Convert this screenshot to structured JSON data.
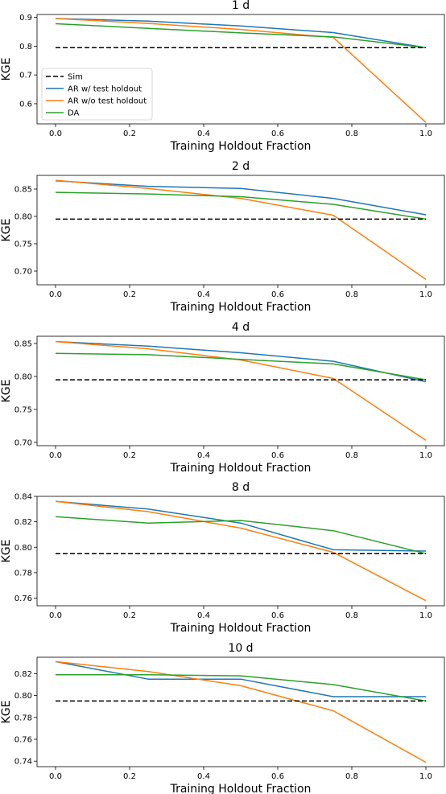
{
  "chart_data": [
    {
      "type": "line",
      "title": "1 d",
      "xlabel": "Training Holdout Fraction",
      "ylabel": "KGE",
      "x": [
        0,
        0.25,
        0.5,
        0.75,
        1.0
      ],
      "xlim": [
        -0.05,
        1.05
      ],
      "ylim": [
        0.53,
        0.91
      ],
      "xticks": [
        0,
        0.2,
        0.4,
        0.6,
        0.8,
        1.0
      ],
      "xtick_labels": [
        "0.0",
        "0.2",
        "0.4",
        "0.6",
        "0.8",
        "1.0"
      ],
      "yticks": [
        0.6,
        0.7,
        0.8,
        0.9
      ],
      "ytick_labels": [
        "0.6",
        "0.7",
        "0.8",
        "0.9"
      ],
      "series": [
        {
          "name": "Sim",
          "color": "#000000",
          "dashed": true,
          "values": [
            0.795,
            0.795,
            0.795,
            0.795,
            0.795
          ]
        },
        {
          "name": "AR w/ test holdout",
          "color": "#1f77b4",
          "values": [
            0.896,
            0.887,
            0.87,
            0.847,
            0.795
          ]
        },
        {
          "name": "AR w/o test holdout",
          "color": "#ff7f0e",
          "values": [
            0.896,
            0.879,
            0.858,
            0.83,
            0.535
          ]
        },
        {
          "name": "DA",
          "color": "#2ca02c",
          "values": [
            0.878,
            0.862,
            0.846,
            0.832,
            0.795
          ]
        }
      ],
      "legend": {
        "show": true,
        "position": "lower-left"
      }
    },
    {
      "type": "line",
      "title": "2 d",
      "xlabel": "Training Holdout Fraction",
      "ylabel": "KGE",
      "x": [
        0,
        0.25,
        0.5,
        0.75,
        1.0
      ],
      "xlim": [
        -0.05,
        1.05
      ],
      "ylim": [
        0.675,
        0.875
      ],
      "xticks": [
        0,
        0.2,
        0.4,
        0.6,
        0.8,
        1.0
      ],
      "xtick_labels": [
        "0.0",
        "0.2",
        "0.4",
        "0.6",
        "0.8",
        "1.0"
      ],
      "yticks": [
        0.7,
        0.75,
        0.8,
        0.85
      ],
      "ytick_labels": [
        "0.70",
        "0.75",
        "0.80",
        "0.85"
      ],
      "series": [
        {
          "name": "Sim",
          "color": "#000000",
          "dashed": true,
          "values": [
            0.795,
            0.795,
            0.795,
            0.795,
            0.795
          ]
        },
        {
          "name": "AR w/ test holdout",
          "color": "#1f77b4",
          "values": [
            0.865,
            0.855,
            0.851,
            0.833,
            0.803
          ]
        },
        {
          "name": "AR w/o test holdout",
          "color": "#ff7f0e",
          "values": [
            0.866,
            0.851,
            0.833,
            0.802,
            0.685
          ]
        },
        {
          "name": "DA",
          "color": "#2ca02c",
          "values": [
            0.844,
            0.841,
            0.836,
            0.822,
            0.795
          ]
        }
      ],
      "legend": {
        "show": false
      }
    },
    {
      "type": "line",
      "title": "4 d",
      "xlabel": "Training Holdout Fraction",
      "ylabel": "KGE",
      "x": [
        0,
        0.25,
        0.5,
        0.75,
        1.0
      ],
      "xlim": [
        -0.05,
        1.05
      ],
      "ylim": [
        0.695,
        0.861
      ],
      "xticks": [
        0,
        0.2,
        0.4,
        0.6,
        0.8,
        1.0
      ],
      "xtick_labels": [
        "0.0",
        "0.2",
        "0.4",
        "0.6",
        "0.8",
        "1.0"
      ],
      "yticks": [
        0.7,
        0.75,
        0.8,
        0.85
      ],
      "ytick_labels": [
        "0.70",
        "0.75",
        "0.80",
        "0.85"
      ],
      "series": [
        {
          "name": "Sim",
          "color": "#000000",
          "dashed": true,
          "values": [
            0.795,
            0.795,
            0.795,
            0.795,
            0.795
          ]
        },
        {
          "name": "AR w/ test holdout",
          "color": "#1f77b4",
          "values": [
            0.853,
            0.846,
            0.836,
            0.823,
            0.792
          ]
        },
        {
          "name": "AR w/o test holdout",
          "color": "#ff7f0e",
          "values": [
            0.853,
            0.842,
            0.825,
            0.797,
            0.703
          ]
        },
        {
          "name": "DA",
          "color": "#2ca02c",
          "values": [
            0.835,
            0.833,
            0.826,
            0.819,
            0.795
          ]
        }
      ],
      "legend": {
        "show": false
      }
    },
    {
      "type": "line",
      "title": "8 d",
      "xlabel": "Training Holdout Fraction",
      "ylabel": "KGE",
      "x": [
        0,
        0.25,
        0.5,
        0.75,
        1.0
      ],
      "xlim": [
        -0.05,
        1.05
      ],
      "ylim": [
        0.754,
        0.84
      ],
      "xticks": [
        0,
        0.2,
        0.4,
        0.6,
        0.8,
        1.0
      ],
      "xtick_labels": [
        "0.0",
        "0.2",
        "0.4",
        "0.6",
        "0.8",
        "1.0"
      ],
      "yticks": [
        0.76,
        0.78,
        0.8,
        0.82,
        0.84
      ],
      "ytick_labels": [
        "0.76",
        "0.78",
        "0.80",
        "0.82",
        "0.84"
      ],
      "series": [
        {
          "name": "Sim",
          "color": "#000000",
          "dashed": true,
          "values": [
            0.795,
            0.795,
            0.795,
            0.795,
            0.795
          ]
        },
        {
          "name": "AR w/ test holdout",
          "color": "#1f77b4",
          "values": [
            0.836,
            0.83,
            0.819,
            0.798,
            0.797
          ]
        },
        {
          "name": "AR w/o test holdout",
          "color": "#ff7f0e",
          "values": [
            0.836,
            0.828,
            0.815,
            0.796,
            0.758
          ]
        },
        {
          "name": "DA",
          "color": "#2ca02c",
          "values": [
            0.824,
            0.819,
            0.821,
            0.813,
            0.795
          ]
        }
      ],
      "legend": {
        "show": false
      }
    },
    {
      "type": "line",
      "title": "10 d",
      "xlabel": "Training Holdout Fraction",
      "ylabel": "KGE",
      "x": [
        0,
        0.25,
        0.5,
        0.75,
        1.0
      ],
      "xlim": [
        -0.05,
        1.05
      ],
      "ylim": [
        0.735,
        0.835
      ],
      "xticks": [
        0,
        0.2,
        0.4,
        0.6,
        0.8,
        1.0
      ],
      "xtick_labels": [
        "0.0",
        "0.2",
        "0.4",
        "0.6",
        "0.8",
        "1.0"
      ],
      "yticks": [
        0.74,
        0.76,
        0.78,
        0.8,
        0.82
      ],
      "ytick_labels": [
        "0.74",
        "0.76",
        "0.78",
        "0.80",
        "0.82"
      ],
      "series": [
        {
          "name": "Sim",
          "color": "#000000",
          "dashed": true,
          "values": [
            0.795,
            0.795,
            0.795,
            0.795,
            0.795
          ]
        },
        {
          "name": "AR w/ test holdout",
          "color": "#1f77b4",
          "values": [
            0.831,
            0.815,
            0.815,
            0.799,
            0.799
          ]
        },
        {
          "name": "AR w/o test holdout",
          "color": "#ff7f0e",
          "values": [
            0.831,
            0.822,
            0.809,
            0.786,
            0.739
          ]
        },
        {
          "name": "DA",
          "color": "#2ca02c",
          "values": [
            0.819,
            0.819,
            0.818,
            0.81,
            0.795
          ]
        }
      ],
      "legend": {
        "show": false
      }
    }
  ]
}
